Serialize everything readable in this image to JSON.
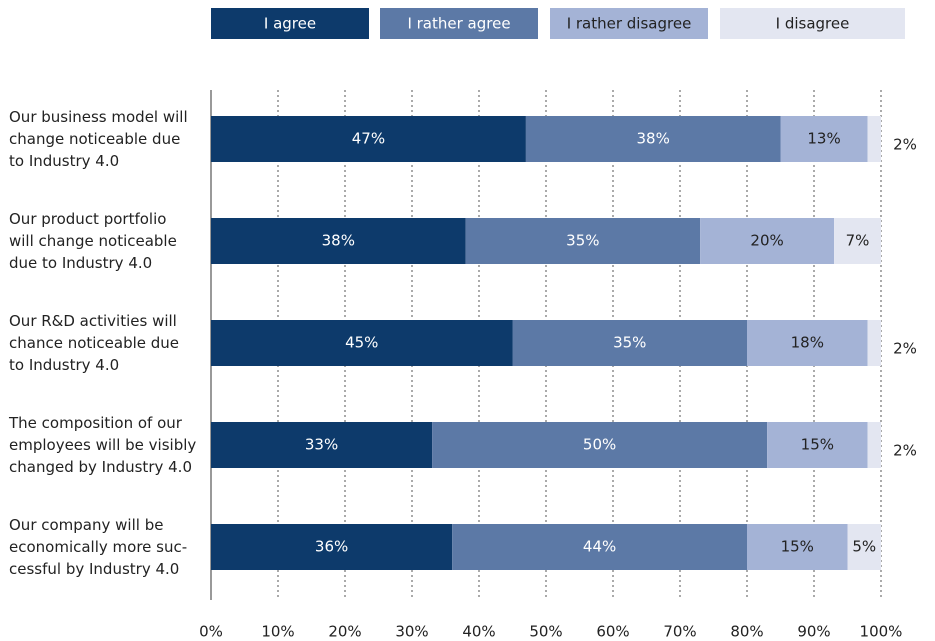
{
  "chart_data": {
    "type": "stacked_barh",
    "categories": [
      "Our business model will\nchange noticeable due\nto Industry 4.0",
      "Our product portfolio\nwill change noticeable\ndue to Industry 4.0",
      "Our R&D activities will\nchance noticeable due\nto Industry 4.0",
      "The composition of our\nemployees will be visibly\nchanged by Industry 4.0",
      "Our company will be\neconomically more suc-\ncessful by Industry 4.0"
    ],
    "series": [
      {
        "name": "I agree",
        "color": "#0d3a6b",
        "values": [
          47,
          38,
          45,
          33,
          36
        ],
        "value_labels": [
          "47%",
          "38%",
          "45%",
          "33%",
          "36%"
        ]
      },
      {
        "name": "I rather agree",
        "color": "#5c79a6",
        "values": [
          38,
          35,
          35,
          50,
          44
        ],
        "value_labels": [
          "38%",
          "35%",
          "35%",
          "50%",
          "44%"
        ]
      },
      {
        "name": "I rather disagree",
        "color": "#a4b3d6",
        "values": [
          13,
          20,
          18,
          15,
          15
        ],
        "value_labels": [
          "13%",
          "20%",
          "18%",
          "15%",
          "15%"
        ]
      },
      {
        "name": "I disagree",
        "color": "#e3e6f1",
        "values": [
          2,
          7,
          2,
          2,
          5
        ],
        "value_labels": [
          "2%",
          "7%",
          "2%",
          "2%",
          "5%"
        ]
      }
    ],
    "xlim": [
      0,
      100
    ],
    "xticks": [
      {
        "value": 0,
        "label": "0%"
      },
      {
        "value": 10,
        "label": "10%"
      },
      {
        "value": 20,
        "label": "20%"
      },
      {
        "value": 30,
        "label": "30%"
      },
      {
        "value": 40,
        "label": "40%"
      },
      {
        "value": 50,
        "label": "50%"
      },
      {
        "value": 60,
        "label": "60%"
      },
      {
        "value": 70,
        "label": "70%"
      },
      {
        "value": 80,
        "label": "80%"
      },
      {
        "value": 90,
        "label": "90%"
      },
      {
        "value": 100,
        "label": "100%"
      }
    ],
    "grid": true,
    "legend": "top"
  }
}
